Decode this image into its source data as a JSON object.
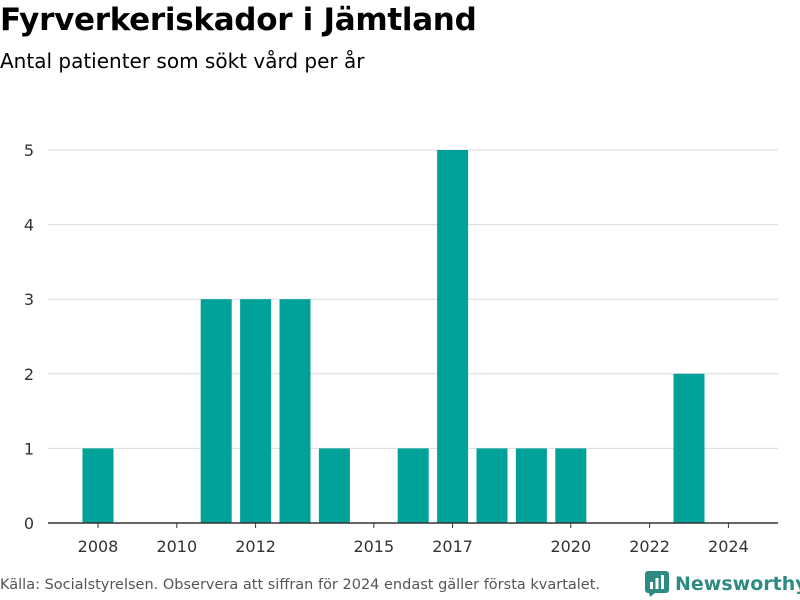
{
  "title": "Fyrverkeriskador i Jämtland",
  "subtitle": "Antal patienter som sökt vård per år",
  "footer": {
    "source_note": "Källa: Socialstyrelsen. Observera att siffran för 2024 endast gäller första kvartalet.",
    "brand": "Newsworthy"
  },
  "colors": {
    "bar": "#00a199",
    "grid": "#dcdcdc",
    "axis": "#333333",
    "brand": "#2e8b82"
  },
  "chart_data": {
    "type": "bar",
    "categories": [
      2008,
      2009,
      2010,
      2011,
      2012,
      2013,
      2014,
      2015,
      2016,
      2017,
      2018,
      2019,
      2020,
      2021,
      2022,
      2023,
      2024
    ],
    "values": [
      1,
      0,
      0,
      3,
      3,
      3,
      1,
      0,
      1,
      5,
      1,
      1,
      1,
      0,
      0,
      2,
      0
    ],
    "x_ticks": [
      2008,
      2010,
      2012,
      2015,
      2017,
      2020,
      2022,
      2024
    ],
    "y_ticks": [
      0,
      1,
      2,
      3,
      4,
      5
    ],
    "ylim": [
      0,
      5
    ],
    "grid": true,
    "title": "Fyrverkeriskador i Jämtland",
    "subtitle": "Antal patienter som sökt vård per år",
    "xlabel": "",
    "ylabel": ""
  }
}
